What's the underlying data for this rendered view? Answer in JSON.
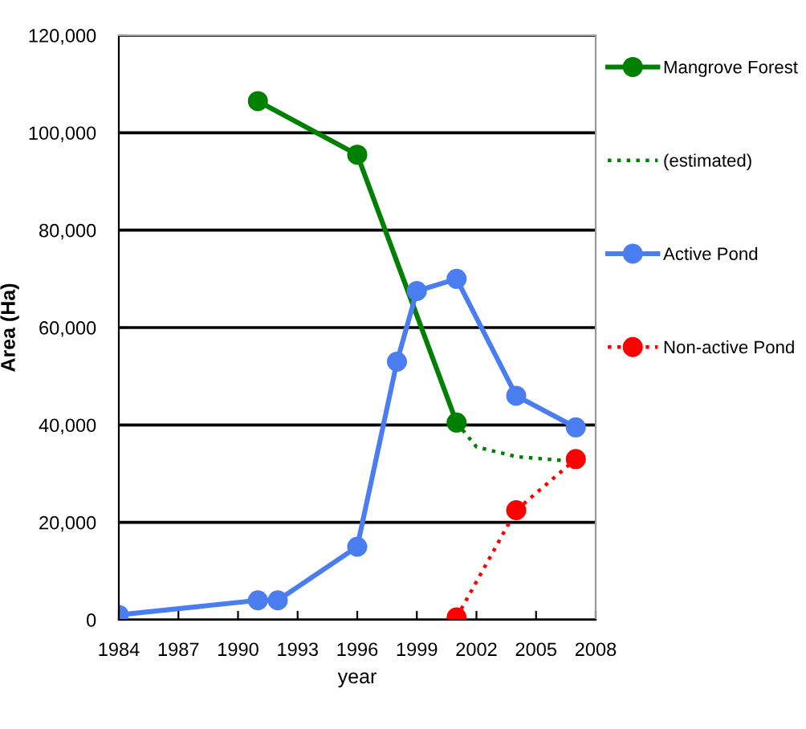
{
  "chart_data": {
    "type": "line",
    "xlabel": "year",
    "ylabel": "Area (Ha)",
    "xlim": [
      1984,
      2008
    ],
    "xticks": [
      1984,
      1987,
      1990,
      1993,
      1996,
      1999,
      2002,
      2005,
      2008
    ],
    "ylim": [
      0,
      120000
    ],
    "yticks": [
      {
        "value": 0,
        "label": "0"
      },
      {
        "value": 20000,
        "label": "20,000"
      },
      {
        "value": 40000,
        "label": "40,000"
      },
      {
        "value": 60000,
        "label": "60,000"
      },
      {
        "value": 80000,
        "label": "80,000"
      },
      {
        "value": 100000,
        "label": "100,000"
      },
      {
        "value": 120000,
        "label": "120,000"
      }
    ],
    "grid": "y",
    "legend": "right",
    "series": [
      {
        "name": "Mangrove Forest",
        "color": "#008000",
        "marker": "circle",
        "line_style": "solid",
        "x": [
          1991,
          1996,
          2001
        ],
        "values": [
          106500,
          95500,
          40500
        ]
      },
      {
        "name": "(estimated)",
        "color": "#008000",
        "marker": "none",
        "line_style": "dotted",
        "x": [
          2001,
          2002,
          2004,
          2007
        ],
        "values": [
          40500,
          35500,
          33500,
          32500
        ]
      },
      {
        "name": "Active Pond",
        "color": "#4a7ef0",
        "marker": "circle",
        "line_style": "solid",
        "x": [
          1984,
          1991,
          1992,
          1996,
          1998,
          1999,
          2001,
          2004,
          2007
        ],
        "values": [
          1000,
          4000,
          4000,
          15000,
          53000,
          67500,
          70000,
          46000,
          39500
        ]
      },
      {
        "name": "Non-active Pond",
        "color": "#ff0000",
        "marker": "circle",
        "line_style": "dotted",
        "x": [
          2001,
          2004,
          2007
        ],
        "values": [
          500,
          22500,
          33000
        ]
      }
    ]
  }
}
